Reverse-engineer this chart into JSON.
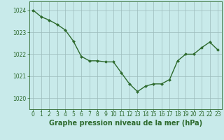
{
  "x": [
    0,
    1,
    2,
    3,
    4,
    5,
    6,
    7,
    8,
    9,
    10,
    11,
    12,
    13,
    14,
    15,
    16,
    17,
    18,
    19,
    20,
    21,
    22,
    23
  ],
  "y": [
    1024.0,
    1023.7,
    1023.55,
    1023.35,
    1023.1,
    1022.6,
    1021.9,
    1021.7,
    1021.7,
    1021.65,
    1021.65,
    1021.15,
    1020.65,
    1020.3,
    1020.55,
    1020.65,
    1020.65,
    1020.85,
    1021.7,
    1022.0,
    1022.0,
    1022.3,
    1022.55,
    1022.2
  ],
  "line_color": "#2d6a2d",
  "marker": "D",
  "marker_size": 2.0,
  "background_color": "#c8eaea",
  "grid_color": "#9cbcbc",
  "ylabel_ticks": [
    1020,
    1021,
    1022,
    1023,
    1024
  ],
  "ylim": [
    1019.5,
    1024.4
  ],
  "xlabel_label": "Graphe pression niveau de la mer (hPa)",
  "line_width": 1.0,
  "spine_color": "#2d6a2d",
  "tick_fontsize": 5.5,
  "xlabel_fontsize": 7.0
}
